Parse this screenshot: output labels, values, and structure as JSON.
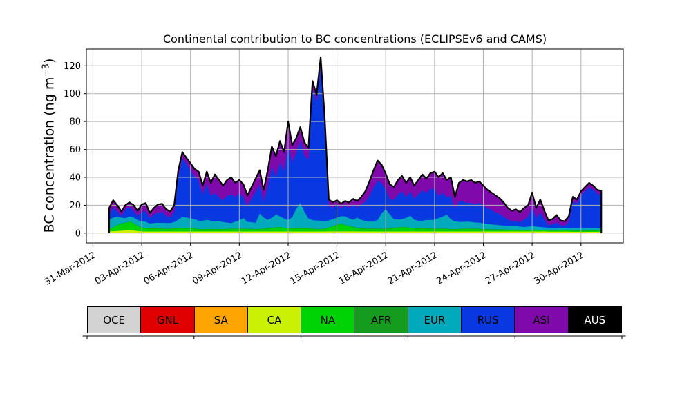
{
  "figure": {
    "title": "Continental contribution to BC concentrations (ECLIPSEv6 and CAMS)",
    "ylabel_pre": "BC concentration (ng m",
    "ylabel_sup": "−3",
    "ylabel_post": ")",
    "background": "#ffffff"
  },
  "legend": {
    "items": [
      {
        "label": "OCE",
        "color": "#d3d3d3",
        "text_color": "#000000"
      },
      {
        "label": "GNL",
        "color": "#e00000",
        "text_color": "#000000"
      },
      {
        "label": "SA",
        "color": "#ffa500",
        "text_color": "#000000"
      },
      {
        "label": "CA",
        "color": "#cbf102",
        "text_color": "#000000"
      },
      {
        "label": "NA",
        "color": "#00d305",
        "text_color": "#000000"
      },
      {
        "label": "AFR",
        "color": "#159b1e",
        "text_color": "#000000"
      },
      {
        "label": "EUR",
        "color": "#00aabb",
        "text_color": "#000000"
      },
      {
        "label": "RUS",
        "color": "#0838e0",
        "text_color": "#000000"
      },
      {
        "label": "ASI",
        "color": "#8009ac",
        "text_color": "#000000"
      },
      {
        "label": "AUS",
        "color": "#000000",
        "text_color": "#ffffff"
      }
    ]
  },
  "chart_data": {
    "type": "area",
    "stacked": true,
    "title": "Continental contribution to BC concentrations (ECLIPSEv6 and CAMS)",
    "ylabel": "BC concentration (ng m−3)",
    "grid": true,
    "grid_color": "#b0b0b0",
    "outline_color": "#000000",
    "x_epoch_label": "31-Mar-2012",
    "x_start_day": 1.0,
    "x_step_days": 0.25,
    "xlim_days": [
      -0.4,
      32.6
    ],
    "ylim": [
      -7,
      132
    ],
    "yticks": [
      0,
      20,
      40,
      60,
      80,
      100,
      120
    ],
    "x_tick_days": [
      0,
      3,
      6,
      9,
      12,
      15,
      18,
      21,
      24,
      27,
      30
    ],
    "x_tick_labels": [
      "31-Mar-2012",
      "03-Apr-2012",
      "06-Apr-2012",
      "09-Apr-2012",
      "12-Apr-2012",
      "15-Apr-2012",
      "18-Apr-2012",
      "21-Apr-2012",
      "24-Apr-2012",
      "27-Apr-2012",
      "30-Apr-2012"
    ],
    "series": [
      {
        "name": "OCE",
        "color": "#d3d3d3",
        "constant": 0.15
      },
      {
        "name": "GNL",
        "color": "#e00000",
        "constant": 0.05
      },
      {
        "name": "SA",
        "color": "#ffa500",
        "constant": 0.25
      },
      {
        "name": "CA",
        "color": "#cbf102",
        "values": [
          1.0,
          1.0,
          1.2,
          1.4,
          1.8,
          1.8,
          1.6,
          1.2,
          0.9,
          0.8,
          0.8,
          0.8,
          0.8,
          0.8,
          0.8,
          0.8,
          0.8,
          0.8,
          0.8,
          0.8,
          0.8,
          0.8,
          0.8,
          0.8,
          0.8,
          0.8,
          0.8,
          0.8,
          0.8,
          0.8,
          0.8,
          0.8,
          0.8,
          0.8,
          0.8,
          0.8,
          0.8,
          0.8,
          0.8,
          0.8,
          0.8,
          0.8,
          0.8,
          0.8,
          0.8,
          0.8,
          0.8,
          0.8,
          0.8,
          0.8,
          0.8,
          0.8,
          0.8,
          0.8,
          0.9,
          0.9,
          0.9,
          0.9,
          0.9,
          0.9,
          0.9,
          0.9,
          0.8,
          0.8,
          0.8,
          0.8,
          0.8,
          0.8,
          0.8,
          0.8,
          0.8,
          0.8,
          0.8,
          0.8,
          0.8,
          0.8,
          0.8,
          0.8,
          0.8,
          0.8,
          0.8,
          0.8,
          0.8,
          0.8,
          0.8,
          0.8,
          0.8,
          0.8,
          0.8,
          0.8,
          0.8,
          0.8,
          0.8,
          0.8,
          0.8,
          0.8,
          0.8,
          0.8,
          0.8,
          0.8,
          0.8,
          0.8,
          0.8,
          0.8,
          0.8,
          0.8,
          0.8,
          0.8,
          0.7,
          0.7,
          0.7,
          0.7,
          0.7,
          0.7,
          0.6,
          0.6,
          0.6,
          0.6,
          0.6,
          0.6,
          0.6,
          0.6
        ]
      },
      {
        "name": "NA",
        "color": "#00d305",
        "values": [
          1.6,
          2.5,
          4.0,
          5.0,
          5.0,
          6.0,
          5.0,
          3.5,
          2.5,
          2.2,
          2.0,
          2.0,
          2.0,
          1.9,
          1.8,
          1.8,
          2.0,
          2.2,
          2.2,
          2.2,
          2.2,
          2.0,
          1.5,
          1.5,
          1.5,
          1.5,
          1.5,
          1.5,
          1.5,
          1.6,
          1.7,
          1.8,
          1.8,
          1.8,
          1.7,
          1.6,
          1.5,
          1.6,
          1.7,
          2.0,
          2.5,
          2.8,
          3.0,
          2.5,
          2.0,
          2.0,
          2.0,
          2.2,
          2.0,
          2.0,
          1.8,
          1.6,
          1.5,
          1.8,
          2.5,
          3.5,
          4.5,
          5.0,
          4.5,
          3.5,
          3.0,
          2.5,
          2.0,
          1.9,
          1.8,
          1.8,
          1.8,
          1.8,
          1.8,
          2.0,
          2.5,
          2.8,
          3.0,
          3.0,
          2.5,
          2.2,
          2.0,
          2.0,
          1.9,
          1.9,
          1.8,
          1.8,
          1.8,
          1.7,
          1.5,
          1.5,
          1.6,
          1.7,
          1.8,
          1.8,
          1.7,
          1.6,
          1.5,
          1.4,
          1.3,
          1.3,
          1.2,
          1.2,
          1.1,
          1.1,
          1.0,
          1.0,
          1.0,
          1.0,
          1.0,
          1.0,
          1.0,
          0.9,
          0.8,
          0.8,
          0.8,
          0.8,
          0.8,
          0.8,
          0.8,
          0.7,
          0.7,
          0.7,
          0.7,
          0.7,
          0.7,
          0.7
        ]
      },
      {
        "name": "AFR",
        "color": "#159b1e",
        "constant": 0.3
      },
      {
        "name": "EUR",
        "color": "#00aabb",
        "values": [
          6.5,
          7.0,
          6.0,
          4.0,
          3.2,
          3.5,
          4.0,
          4.0,
          4.5,
          4.5,
          3.5,
          3.8,
          4.0,
          4.0,
          4.0,
          4.0,
          4.5,
          6.0,
          8.0,
          7.5,
          7.0,
          6.5,
          6.0,
          6.0,
          6.5,
          6.0,
          5.5,
          5.5,
          5.0,
          4.5,
          4.0,
          5.0,
          6.0,
          7.5,
          5.0,
          4.8,
          4.5,
          11.0,
          8.0,
          6.0,
          7.0,
          9.0,
          7.5,
          6.5,
          6.0,
          8.0,
          14.0,
          18.0,
          12.0,
          7.0,
          6.0,
          6.0,
          6.0,
          5.5,
          5.0,
          5.0,
          5.0,
          5.5,
          6.0,
          5.5,
          5.0,
          7.0,
          6.0,
          5.5,
          5.0,
          5.5,
          6.0,
          11.0,
          14.0,
          10.0,
          6.0,
          5.5,
          5.5,
          6.5,
          8.5,
          6.0,
          5.5,
          5.5,
          6.0,
          6.0,
          6.5,
          7.5,
          8.5,
          10.0,
          7.0,
          5.5,
          5.0,
          5.0,
          5.0,
          4.8,
          4.5,
          4.5,
          4.0,
          3.8,
          3.5,
          3.2,
          3.0,
          2.8,
          2.5,
          2.5,
          2.5,
          2.2,
          2.0,
          2.2,
          2.5,
          2.2,
          2.0,
          1.8,
          1.5,
          1.5,
          1.5,
          1.4,
          1.2,
          1.3,
          1.5,
          1.5,
          1.5,
          1.5,
          1.5,
          1.5,
          1.5,
          1.5
        ]
      },
      {
        "name": "RUS",
        "color": "#0838e0",
        "values": [
          3.5,
          7.1,
          3.9,
          1.2,
          6.6,
          6.8,
          4.5,
          2.9,
          6.7,
          7.6,
          3.8,
          6.0,
          7.3,
          7.9,
          5.0,
          4.0,
          7.3,
          30.6,
          42.1,
          38.6,
          34.6,
          30.8,
          28.8,
          18.8,
          26.3,
          17.8,
          20.3,
          17.3,
          15.8,
          19.2,
          20.6,
          17.5,
          19.5,
          15.0,
          11.6,
          16.9,
          22.3,
          20.7,
          11.6,
          24.3,
          36.8,
          27.5,
          38.8,
          34.3,
          53.3,
          39.3,
          40.3,
          45.1,
          40.3,
          42.3,
          94.0,
          85.7,
          109.8,
          68.0,
          10.7,
          8.2,
          9.2,
          5.7,
          7.7,
          7.7,
          10.7,
          7.2,
          11.2,
          13.9,
          18.5,
          24.0,
          28.5,
          21.5,
          14.0,
          11.3,
          13.8,
          18.0,
          19.8,
          14.8,
          17.3,
          15.1,
          18.8,
          21.8,
          19.4,
          22.4,
          22.0,
          16.0,
          17.0,
          12.6,
          16.8,
          9.3,
          14.7,
          14.6,
          13.5,
          13.7,
          13.1,
          14.2,
          12.8,
          11.1,
          10.5,
          8.8,
          8.1,
          6.3,
          4.7,
          3.7,
          3.8,
          3.1,
          5.3,
          7.1,
          13.8,
          6.1,
          10.3,
          5.6,
          2.1,
          2.6,
          4.1,
          2.2,
          1.9,
          4.8,
          19.2,
          17.8,
          23.8,
          26.8,
          29.3,
          27.8,
          24.8,
          24.0
        ]
      },
      {
        "name": "ASI",
        "color": "#8009ac",
        "values": [
          4.5,
          5.0,
          4.0,
          3.0,
          2.5,
          3.0,
          4.0,
          3.5,
          5.0,
          5.5,
          3.5,
          4.5,
          5.5,
          5.5,
          4.5,
          4.0,
          4.5,
          4.5,
          4.0,
          4.0,
          4.5,
          5.0,
          6.0,
          6.0,
          8.0,
          9.0,
          13.0,
          12.0,
          10.0,
          11.0,
          12.0,
          10.0,
          9.0,
          9.0,
          7.0,
          8.0,
          9.0,
          10.0,
          8.0,
          11.0,
          14.0,
          14.0,
          15.0,
          13.0,
          17.0,
          12.0,
          10.0,
          9.0,
          9.0,
          8.0,
          5.5,
          4.0,
          7.0,
          6.0,
          4.0,
          3.5,
          3.0,
          3.0,
          3.0,
          3.5,
          4.0,
          4.5,
          5.0,
          7.0,
          10.0,
          12.0,
          14.0,
          13.0,
          11.0,
          10.0,
          9.0,
          10.0,
          11.0,
          10.0,
          10.0,
          9.0,
          10.0,
          11.0,
          10.0,
          11.0,
          12.0,
          13.0,
          14.0,
          12.0,
          13.0,
          8.0,
          13.0,
          15.0,
          15.0,
          16.0,
          15.0,
          15.0,
          14.0,
          13.0,
          12.0,
          12.0,
          11.0,
          10.0,
          8.0,
          7.0,
          8.0,
          7.0,
          8.0,
          8.0,
          10.0,
          7.0,
          9.0,
          6.0,
          3.0,
          3.5,
          5.0,
          3.0,
          3.0,
          3.5,
          3.0,
          2.5,
          2.5,
          2.5,
          3.0,
          2.5,
          2.5,
          2.5
        ]
      },
      {
        "name": "AUS",
        "color": "#000000",
        "constant": 0.2
      }
    ]
  }
}
